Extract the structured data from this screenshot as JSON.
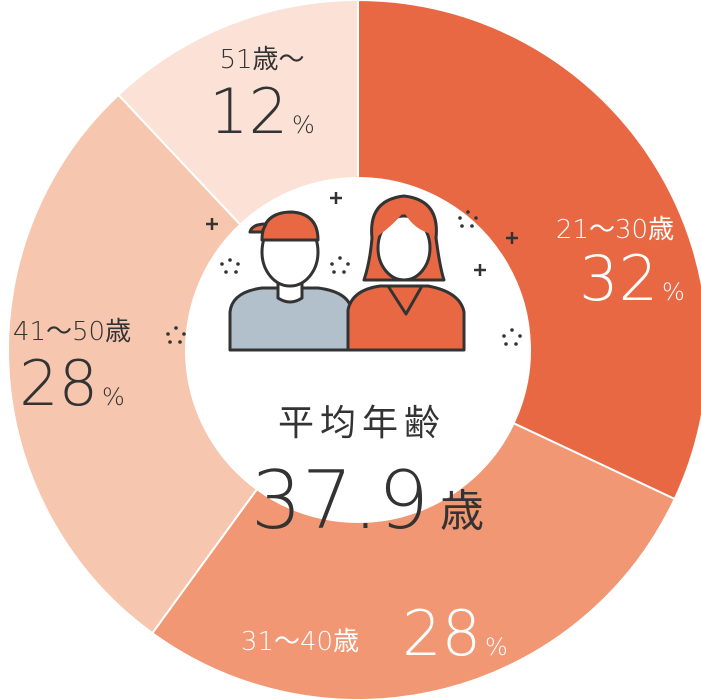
{
  "chart_data": {
    "type": "donut",
    "categories": [
      "21～30歳",
      "31～40歳",
      "41～50歳",
      "51歳～"
    ],
    "values": [
      32,
      28,
      28,
      12
    ],
    "value_unit": "%",
    "colors": [
      "#e96844",
      "#f19774",
      "#f6c6ae",
      "#fbe1d6"
    ],
    "label_colors": [
      "#ffffff",
      "#ffffff",
      "#333333",
      "#333333"
    ],
    "center_title": "平均年齢",
    "center_value": "37.9",
    "center_unit": "歳"
  }
}
